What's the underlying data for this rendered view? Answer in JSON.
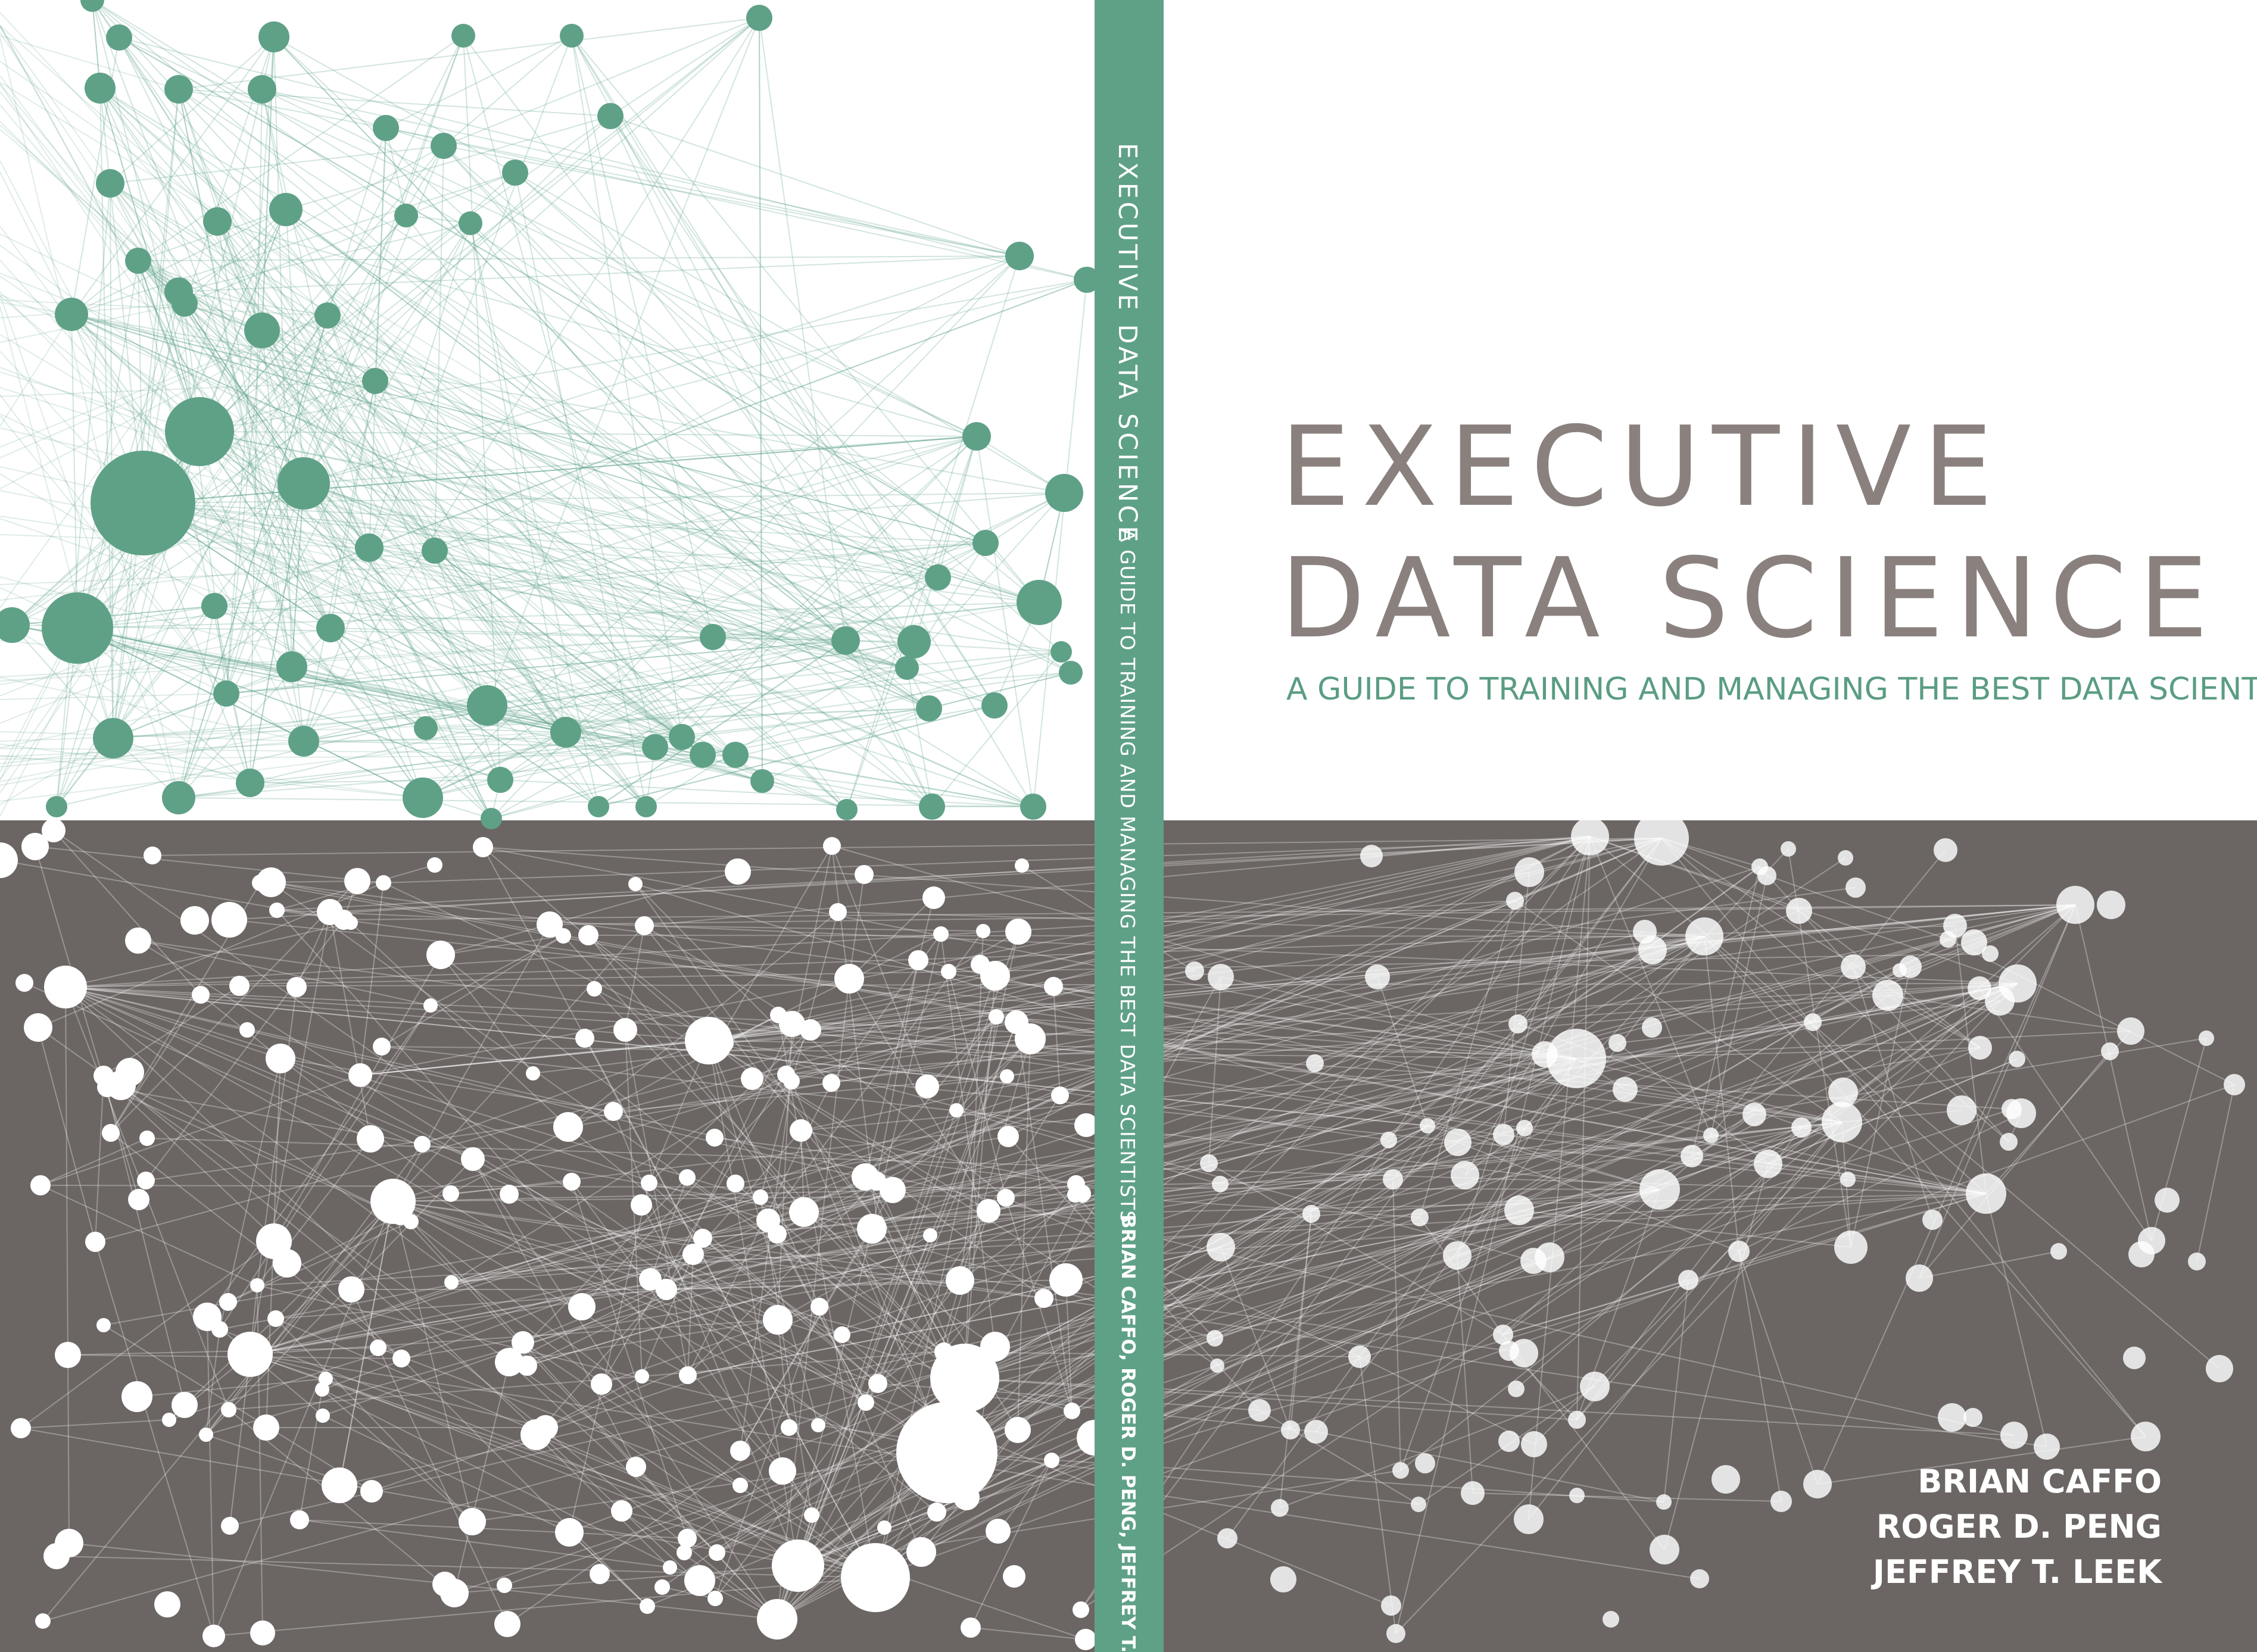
{
  "colors": {
    "network_green": "#5fa187",
    "network_green_dark": "#5a9d82",
    "panel_gray": "#6b6664",
    "node_white": "#ffffff",
    "title_gray": "#8a817e",
    "spine_green": "#5fa187"
  },
  "spine": {
    "title": "EXECUTIVE DATA SCIENCE",
    "subtitle": "A GUIDE TO TRAINING AND MANAGING THE BEST DATA SCIENTISTS",
    "authors": "BRIAN CAFFO, ROGER D. PENG, JEFFREY T. LEEK"
  },
  "front": {
    "title_line_1": "EXECUTIVE",
    "title_line_2": "DATA SCIENCE",
    "subtitle": "A GUIDE TO TRAINING AND MANAGING THE BEST DATA SCIENTISTS",
    "authors": [
      "BRIAN CAFFO",
      "ROGER D. PENG",
      "JEFFREY T. LEEK"
    ]
  }
}
